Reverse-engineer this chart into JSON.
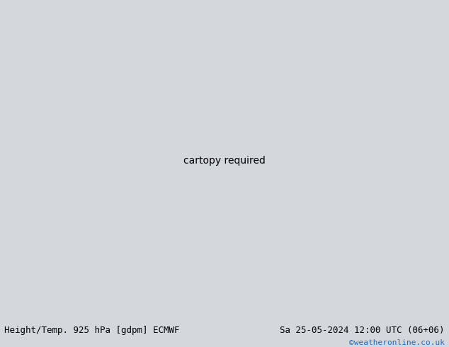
{
  "title_left": "Height/Temp. 925 hPa [gdpm] ECMWF",
  "title_right": "Sa 25-05-2024 12:00 UTC (06+06)",
  "credit": "©weatheronline.co.uk",
  "bg_color": "#d4d8dc",
  "land_color": "#b5d98a",
  "ocean_color": "#d4d8dc",
  "border_color": "#888888",
  "credit_color": "#1a6fcc",
  "title_fontsize": 9,
  "credit_fontsize": 8
}
